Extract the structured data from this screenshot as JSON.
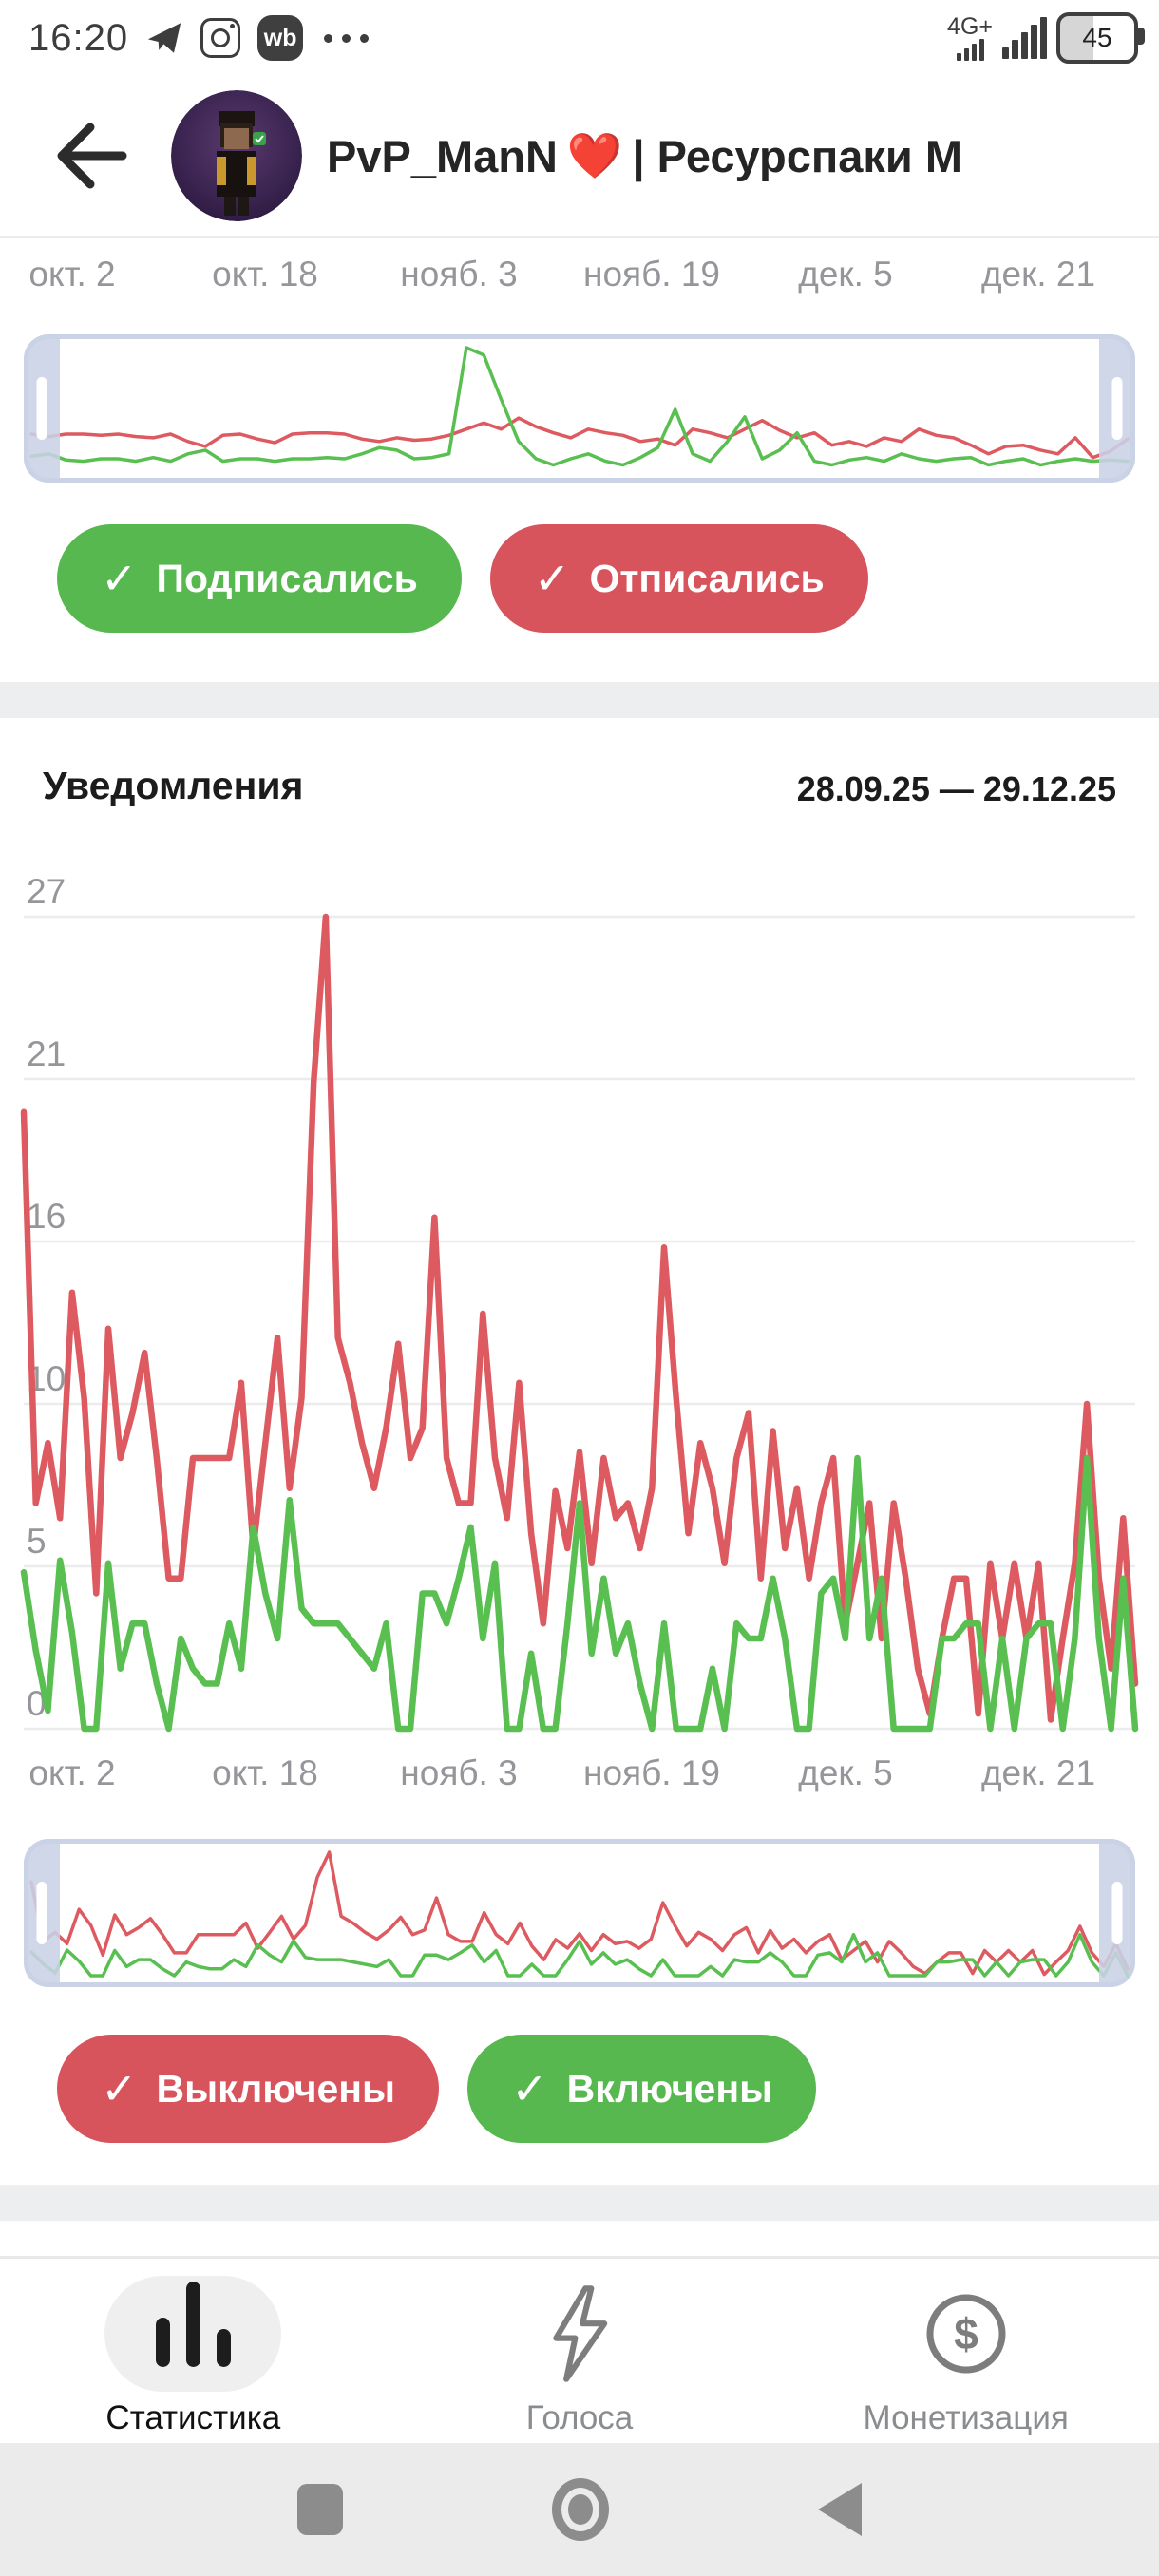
{
  "status_bar": {
    "time": "16:20",
    "wb_badge": "wb",
    "more_dots": "•••",
    "network": "4G+",
    "battery_percent": "45"
  },
  "header": {
    "title_pre": "PvP_ManN",
    "title_heart": "❤️",
    "title_post": "| Ресурспаки М"
  },
  "subscribers_section": {
    "buttons": [
      {
        "check": "✓",
        "label": "Подписались",
        "color": "#56b84e"
      },
      {
        "check": "✓",
        "label": "Отписались",
        "color": "#d7545c"
      }
    ]
  },
  "notifications_section": {
    "title": "Уведомления",
    "date_range": "28.09.25 — 29.12.25",
    "buttons": [
      {
        "check": "✓",
        "label": "Выключены",
        "color": "#d7545c"
      },
      {
        "check": "✓",
        "label": "Включены",
        "color": "#56b84e"
      }
    ]
  },
  "bottom_nav": {
    "items": [
      {
        "label": "Статистика",
        "icon": "bar-chart-icon",
        "active": true
      },
      {
        "label": "Голоса",
        "icon": "lightning-icon",
        "active": false
      },
      {
        "label": "Монетизация",
        "icon": "dollar-circle-icon",
        "active": false
      }
    ]
  },
  "colors": {
    "line_red": "#dd5a60",
    "line_green": "#58bf50",
    "grid": "#ececec",
    "axis_text": "#95969a",
    "scrubber_frame": "#ccd3e7"
  },
  "chart_data": [
    {
      "name": "subscribers_minimap",
      "type": "line",
      "x_labels": [
        "окт. 2",
        "окт. 18",
        "нояб. 3",
        "нояб. 19",
        "дек. 5",
        "дек. 21"
      ],
      "x_label_days": [
        4,
        20,
        36,
        52,
        68,
        84
      ],
      "total_days": 93,
      "ymax": 10,
      "series": [
        {
          "name": "Отписались",
          "color": "#dd5a60",
          "values": [
            3,
            2.8,
            3,
            3,
            2.9,
            3,
            2.8,
            2.7,
            3,
            2.4,
            2,
            2.9,
            3,
            2.6,
            2.3,
            3,
            3.1,
            3.1,
            3,
            2.6,
            2.4,
            2.7,
            2.5,
            2.6,
            2.9,
            3.4,
            3.9,
            3.4,
            4.3,
            3.6,
            3.1,
            2.7,
            3.4,
            3.1,
            2.9,
            2.4,
            2.6,
            2.1,
            3.4,
            3.1,
            2.7,
            3.4,
            4.1,
            3.3,
            2.7,
            3.1,
            2.1,
            2.4,
            2,
            2.7,
            2.4,
            3.4,
            2.9,
            2.7,
            2.1,
            1.4,
            2,
            2.1,
            1.7,
            1.4,
            2.7,
            1.1,
            1.6,
            2.6
          ]
        },
        {
          "name": "Подписались",
          "color": "#58bf50",
          "values": [
            1.2,
            1.4,
            0.9,
            0.8,
            1,
            1,
            0.8,
            1.1,
            0.8,
            1.4,
            1.7,
            0.8,
            1,
            1,
            0.8,
            1,
            1,
            1.1,
            1,
            1.4,
            1.9,
            1.7,
            1,
            1.1,
            1.4,
            10,
            9.4,
            5.8,
            2.4,
            1,
            0.5,
            1,
            1.4,
            0.8,
            0.5,
            1.1,
            1.9,
            5,
            1.4,
            0.8,
            2.4,
            4.4,
            1,
            1.7,
            3.1,
            0.8,
            0.5,
            0.9,
            1.1,
            0.8,
            1.4,
            1,
            0.8,
            1,
            1.1,
            0.5,
            0.8,
            1,
            0.5,
            0.8,
            1,
            0.8,
            0.9,
            0.8
          ]
        }
      ]
    },
    {
      "name": "notifications",
      "type": "line",
      "title": "Уведомления",
      "date_range": "28.09.25 — 29.12.25",
      "x_labels": [
        "окт. 2",
        "окт. 18",
        "нояб. 3",
        "нояб. 19",
        "дек. 5",
        "дек. 21"
      ],
      "x_label_days": [
        4,
        20,
        36,
        52,
        68,
        84
      ],
      "total_days": 93,
      "ymax": 27,
      "y_tick_labels": [
        "0",
        "5",
        "10",
        "16",
        "21",
        "27"
      ],
      "grid": true,
      "series": [
        {
          "name": "Выключены",
          "color": "#dd5a60",
          "values": [
            20.5,
            7.5,
            9.5,
            7,
            14.5,
            11,
            4.5,
            13.3,
            9,
            10.5,
            12.5,
            9,
            5,
            5,
            9,
            9,
            9,
            9,
            11.5,
            6,
            9.5,
            13,
            8,
            11,
            21.5,
            27,
            13,
            11.5,
            9.5,
            8,
            10,
            12.8,
            9,
            10,
            17,
            9,
            7.5,
            7.5,
            13.8,
            9,
            7,
            11.5,
            6.5,
            3.5,
            7.9,
            6,
            9.2,
            5.5,
            9,
            7,
            7.5,
            6,
            8,
            16,
            11,
            6.5,
            9.5,
            8,
            5.5,
            9,
            10.5,
            5,
            9.9,
            6,
            8,
            5,
            7.5,
            9,
            3.5,
            5.5,
            7.5,
            3,
            7.5,
            5,
            2,
            0.5,
            3,
            5,
            5,
            0.5,
            5.5,
            3,
            5.5,
            3,
            5.5,
            0.3,
            3,
            5.5,
            10.8,
            5,
            2,
            7,
            1.5
          ]
        },
        {
          "name": "Включены",
          "color": "#58bf50",
          "values": [
            5.2,
            2.6,
            0.6,
            5.6,
            3.2,
            0,
            0,
            5.5,
            2,
            3.5,
            3.5,
            1.5,
            0,
            3,
            2,
            1.5,
            1.5,
            3.5,
            2,
            6.7,
            4.5,
            3,
            7.6,
            4,
            3.5,
            3.5,
            3.5,
            3,
            2.5,
            2,
            3.5,
            0,
            0,
            4.5,
            4.5,
            3.5,
            5,
            6.7,
            3,
            5.5,
            0,
            0,
            2.5,
            0,
            0,
            3.5,
            7.5,
            2.5,
            5,
            2.5,
            3.5,
            1.5,
            0,
            3.5,
            0,
            0,
            0,
            2,
            0,
            3.5,
            3,
            3,
            5,
            3,
            0,
            0,
            4.5,
            5,
            3,
            9,
            3,
            5,
            0,
            0,
            0,
            0,
            3,
            3,
            3.5,
            3.5,
            0,
            3,
            0,
            3,
            3.5,
            3.5,
            0,
            3,
            9,
            3,
            0,
            5,
            0
          ]
        }
      ]
    }
  ]
}
